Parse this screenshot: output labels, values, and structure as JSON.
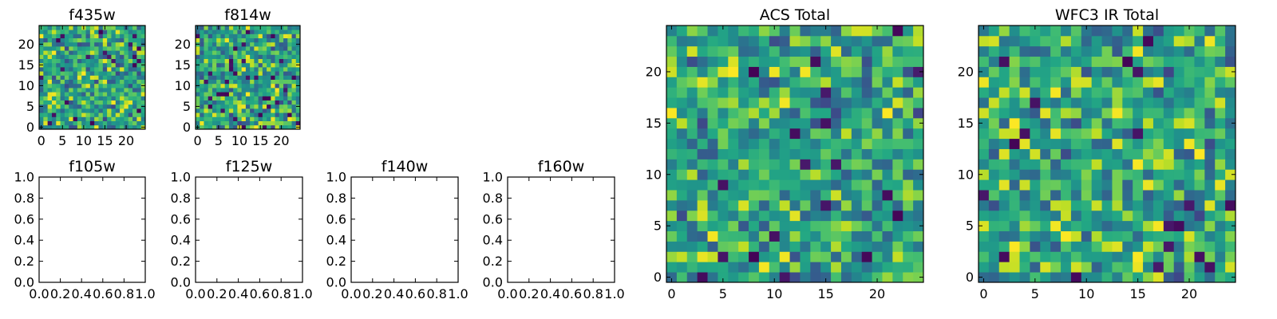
{
  "chart_data": [
    {
      "type": "heatmap",
      "title": "f435w",
      "grid_size": 25,
      "xticks": [
        "0",
        "5",
        "10",
        "15",
        "20"
      ],
      "yticks": [
        "0",
        "5",
        "10",
        "15",
        "20"
      ],
      "xlim": [
        -0.5,
        24.5
      ],
      "ylim": [
        -0.5,
        24.5
      ],
      "colormap": "viridis",
      "seed": 11
    },
    {
      "type": "heatmap",
      "title": "f814w",
      "grid_size": 25,
      "xticks": [
        "0",
        "5",
        "10",
        "15",
        "20"
      ],
      "yticks": [
        "0",
        "5",
        "10",
        "15",
        "20"
      ],
      "xlim": [
        -0.5,
        24.5
      ],
      "ylim": [
        -0.5,
        24.5
      ],
      "colormap": "viridis",
      "seed": 29
    },
    {
      "type": "empty",
      "title": "f105w",
      "xticks": [
        "0.0",
        "0.2",
        "0.4",
        "0.6",
        "0.8",
        "1.0"
      ],
      "yticks": [
        "0.0",
        "0.2",
        "0.4",
        "0.6",
        "0.8",
        "1.0"
      ],
      "xlim": [
        0,
        1
      ],
      "ylim": [
        0,
        1
      ]
    },
    {
      "type": "empty",
      "title": "f125w",
      "xticks": [
        "0.0",
        "0.2",
        "0.4",
        "0.6",
        "0.8",
        "1.0"
      ],
      "yticks": [
        "0.0",
        "0.2",
        "0.4",
        "0.6",
        "0.8",
        "1.0"
      ],
      "xlim": [
        0,
        1
      ],
      "ylim": [
        0,
        1
      ]
    },
    {
      "type": "empty",
      "title": "f140w",
      "xticks": [
        "0.0",
        "0.2",
        "0.4",
        "0.6",
        "0.8",
        "1.0"
      ],
      "yticks": [
        "0.0",
        "0.2",
        "0.4",
        "0.6",
        "0.8",
        "1.0"
      ],
      "xlim": [
        0,
        1
      ],
      "ylim": [
        0,
        1
      ]
    },
    {
      "type": "empty",
      "title": "f160w",
      "xticks": [
        "0.0",
        "0.2",
        "0.4",
        "0.6",
        "0.8",
        "1.0"
      ],
      "yticks": [
        "0.0",
        "0.2",
        "0.4",
        "0.6",
        "0.8",
        "1.0"
      ],
      "xlim": [
        0,
        1
      ],
      "ylim": [
        0,
        1
      ]
    },
    {
      "type": "heatmap",
      "title": "ACS Total",
      "grid_size": 25,
      "xticks": [
        "0",
        "5",
        "10",
        "15",
        "20"
      ],
      "yticks": [
        "0",
        "5",
        "10",
        "15",
        "20"
      ],
      "xlim": [
        -0.5,
        24.5
      ],
      "ylim": [
        -0.5,
        24.5
      ],
      "colormap": "viridis",
      "seed": 53
    },
    {
      "type": "heatmap",
      "title": "WFC3 IR Total",
      "grid_size": 25,
      "xticks": [
        "0",
        "5",
        "10",
        "15",
        "20"
      ],
      "yticks": [
        "0",
        "5",
        "10",
        "15",
        "20"
      ],
      "xlim": [
        -0.5,
        24.5
      ],
      "ylim": [
        -0.5,
        24.5
      ],
      "colormap": "viridis",
      "seed": 97
    }
  ],
  "colors": {
    "viridis_dark": "#440154",
    "viridis_blue": "#3b528b",
    "viridis_teal": "#21918c",
    "viridis_green": "#5ec962",
    "viridis_yellow": "#fde725"
  }
}
